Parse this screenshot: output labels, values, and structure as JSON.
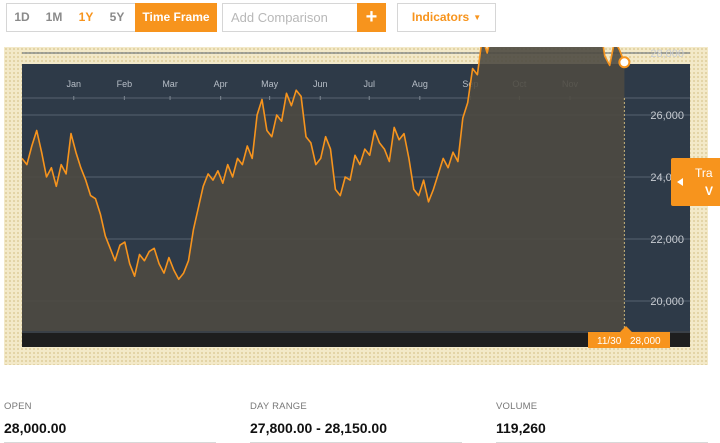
{
  "toolbar": {
    "timeframes": [
      {
        "label": "1D",
        "active": false
      },
      {
        "label": "1M",
        "active": false
      },
      {
        "label": "1Y",
        "active": true
      },
      {
        "label": "5Y",
        "active": false
      }
    ],
    "time_frame_label": "Time Frame",
    "comparison_placeholder": "Add Comparison",
    "add_symbol": "+",
    "indicators_label": "Indicators"
  },
  "tracker": {
    "date": "11/30",
    "value": "28,000",
    "tab_text": "Tra",
    "tab_sub": "V"
  },
  "colors": {
    "accent": "#f7941d",
    "plot_bg": "#2e3a48",
    "line": "#f7941d",
    "area": "#4e4a41"
  },
  "chart_data": {
    "type": "line",
    "title": "",
    "xlabel": "",
    "ylabel": "",
    "months": [
      "Jan",
      "Feb",
      "Mar",
      "Apr",
      "May",
      "Jun",
      "Jul",
      "Aug",
      "Sep",
      "Oct",
      "Nov"
    ],
    "month_days": [
      17,
      48,
      76,
      107,
      137,
      168,
      198,
      229,
      260,
      290,
      321
    ],
    "yticks": [
      "20,000",
      "22,000",
      "24,000",
      "26,000",
      "28,000",
      "30,000"
    ],
    "ytick_values": [
      20000,
      22000,
      24000,
      26000,
      28000,
      30000
    ],
    "ylim": [
      19000,
      32000
    ],
    "xlim": [
      0,
      370
    ],
    "grid": true,
    "series": [
      {
        "values": [
          [
            0,
            24600
          ],
          [
            3,
            24400
          ],
          [
            6,
            25000
          ],
          [
            9,
            25500
          ],
          [
            12,
            24800
          ],
          [
            15,
            24000
          ],
          [
            18,
            24300
          ],
          [
            21,
            23700
          ],
          [
            24,
            24400
          ],
          [
            27,
            24100
          ],
          [
            30,
            25400
          ],
          [
            33,
            24800
          ],
          [
            36,
            24300
          ],
          [
            39,
            23900
          ],
          [
            42,
            23400
          ],
          [
            45,
            23300
          ],
          [
            48,
            22800
          ],
          [
            51,
            22100
          ],
          [
            54,
            21700
          ],
          [
            57,
            21300
          ],
          [
            60,
            21800
          ],
          [
            63,
            21900
          ],
          [
            66,
            21200
          ],
          [
            69,
            20800
          ],
          [
            72,
            21500
          ],
          [
            75,
            21300
          ],
          [
            78,
            21600
          ],
          [
            81,
            21700
          ],
          [
            84,
            21200
          ],
          [
            87,
            20900
          ],
          [
            90,
            21400
          ],
          [
            93,
            21000
          ],
          [
            96,
            20700
          ],
          [
            99,
            20900
          ],
          [
            102,
            21300
          ],
          [
            105,
            22300
          ],
          [
            108,
            23000
          ],
          [
            111,
            23700
          ],
          [
            114,
            24100
          ],
          [
            117,
            23900
          ],
          [
            120,
            24200
          ],
          [
            123,
            23800
          ],
          [
            126,
            24400
          ],
          [
            129,
            24000
          ],
          [
            132,
            24600
          ],
          [
            135,
            24400
          ],
          [
            138,
            25000
          ],
          [
            141,
            24600
          ],
          [
            144,
            26000
          ],
          [
            147,
            26500
          ],
          [
            150,
            25500
          ],
          [
            153,
            25300
          ],
          [
            156,
            26000
          ],
          [
            159,
            25800
          ],
          [
            162,
            26700
          ],
          [
            165,
            26300
          ],
          [
            168,
            26800
          ],
          [
            171,
            26600
          ],
          [
            174,
            25300
          ],
          [
            177,
            25100
          ],
          [
            180,
            24400
          ],
          [
            183,
            24600
          ],
          [
            186,
            25300
          ],
          [
            189,
            24900
          ],
          [
            192,
            23600
          ],
          [
            195,
            23400
          ],
          [
            198,
            24000
          ],
          [
            201,
            23900
          ],
          [
            204,
            24700
          ],
          [
            207,
            24400
          ],
          [
            210,
            24900
          ],
          [
            213,
            24700
          ],
          [
            216,
            25500
          ],
          [
            219,
            25100
          ],
          [
            222,
            24900
          ],
          [
            225,
            24500
          ],
          [
            228,
            25600
          ],
          [
            231,
            25200
          ],
          [
            234,
            25400
          ],
          [
            237,
            24600
          ],
          [
            240,
            23600
          ],
          [
            243,
            23400
          ],
          [
            246,
            23900
          ],
          [
            249,
            23200
          ],
          [
            252,
            23600
          ],
          [
            255,
            24100
          ],
          [
            258,
            24600
          ],
          [
            261,
            24300
          ],
          [
            264,
            24800
          ],
          [
            267,
            24500
          ],
          [
            270,
            25900
          ],
          [
            273,
            26400
          ],
          [
            276,
            27500
          ],
          [
            279,
            27300
          ],
          [
            282,
            28500
          ],
          [
            285,
            28000
          ],
          [
            288,
            28700
          ],
          [
            291,
            28300
          ],
          [
            294,
            29300
          ],
          [
            297,
            29000
          ],
          [
            300,
            30300
          ],
          [
            303,
            29700
          ],
          [
            306,
            30600
          ],
          [
            309,
            30200
          ],
          [
            312,
            31000
          ],
          [
            315,
            30500
          ],
          [
            318,
            30100
          ],
          [
            321,
            30800
          ],
          [
            324,
            30000
          ],
          [
            327,
            30400
          ],
          [
            330,
            31600
          ],
          [
            333,
            31200
          ],
          [
            336,
            30300
          ],
          [
            339,
            29800
          ],
          [
            342,
            30500
          ],
          [
            345,
            30100
          ],
          [
            348,
            29700
          ],
          [
            351,
            29900
          ],
          [
            354,
            28900
          ],
          [
            357,
            27900
          ],
          [
            360,
            27600
          ],
          [
            363,
            28400
          ],
          [
            366,
            28100
          ],
          [
            369,
            27700
          ]
        ]
      }
    ]
  }
}
